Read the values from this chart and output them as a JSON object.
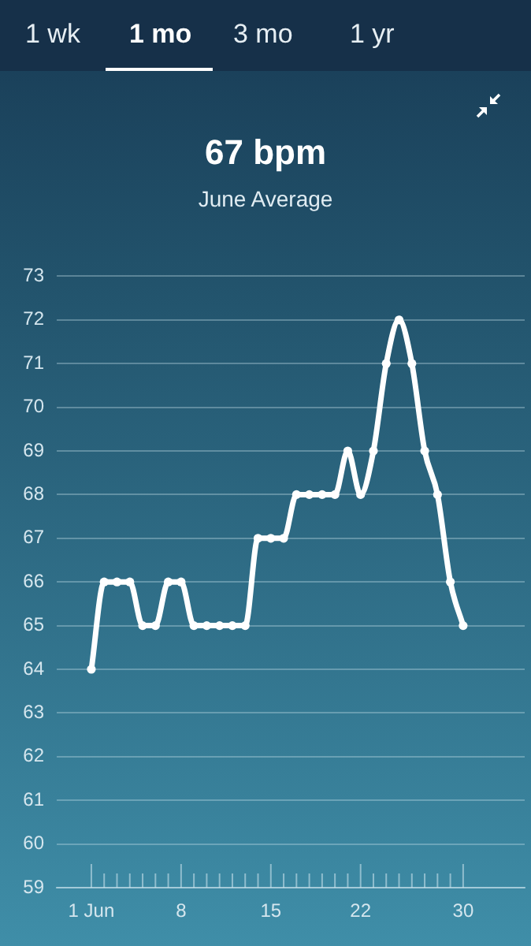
{
  "chart_data": {
    "type": "line",
    "title": "67 bpm",
    "subtitle": "June Average",
    "annotations": [
      "1 wk",
      "1 mo",
      "3 mo",
      "1 yr"
    ],
    "x": [
      1,
      2,
      3,
      4,
      5,
      6,
      7,
      8,
      9,
      10,
      11,
      12,
      13,
      14,
      15,
      16,
      17,
      18,
      19,
      20,
      21,
      22,
      23,
      24,
      25,
      26,
      27,
      28,
      29,
      30
    ],
    "series": [
      {
        "color": "#ffffff",
        "values": [
          64,
          66,
          66,
          66,
          65,
          65,
          66,
          66,
          65,
          65,
          65,
          65,
          65,
          67,
          67,
          67,
          68,
          68,
          68,
          68,
          69,
          68,
          69,
          71,
          72,
          71,
          69,
          68,
          66,
          65
        ]
      }
    ],
    "xlim": [
      -1.7,
      34.8
    ],
    "xticks": [
      {
        "value": 1,
        "label": "1 Jun"
      },
      {
        "value": 2,
        "label": null
      },
      {
        "value": 3,
        "label": null
      },
      {
        "value": 4,
        "label": null
      },
      {
        "value": 5,
        "label": null
      },
      {
        "value": 6,
        "label": null
      },
      {
        "value": 7,
        "label": null
      },
      8,
      {
        "value": 9,
        "label": null
      },
      {
        "value": 10,
        "label": null
      },
      {
        "value": 11,
        "label": null
      },
      {
        "value": 12,
        "label": null
      },
      {
        "value": 13,
        "label": null
      },
      {
        "value": 14,
        "label": null
      },
      15,
      {
        "value": 16,
        "label": null
      },
      {
        "value": 17,
        "label": null
      },
      {
        "value": 18,
        "label": null
      },
      {
        "value": 19,
        "label": null
      },
      {
        "value": 20,
        "label": null
      },
      {
        "value": 21,
        "label": null
      },
      22,
      {
        "value": 23,
        "label": null
      },
      {
        "value": 24,
        "label": null
      },
      {
        "value": 25,
        "label": null
      },
      {
        "value": 26,
        "label": null
      },
      {
        "value": 27,
        "label": null
      },
      {
        "value": 28,
        "label": null
      },
      {
        "value": 29,
        "label": null
      },
      30
    ],
    "ylim": [
      59,
      73
    ],
    "yticks": [
      59,
      60,
      61,
      62,
      63,
      64,
      65,
      66,
      67,
      68,
      69,
      70,
      71,
      72,
      73
    ],
    "grid": "y",
    "legend": false,
    "marker": "circle",
    "line_style": "solid"
  }
}
